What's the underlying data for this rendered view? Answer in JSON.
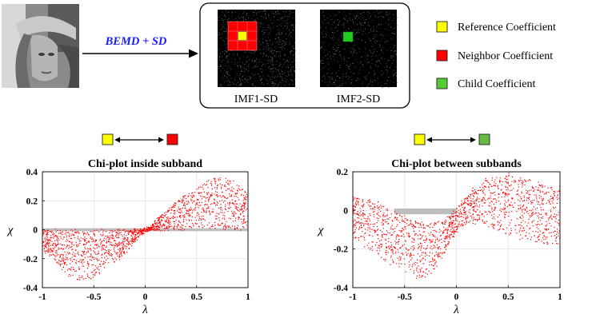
{
  "pipeline": {
    "input_image_icon": "photo-of-woman-with-hat",
    "method_label": "BEMD + SD",
    "method_color": "#1a1aff",
    "imf_panels": [
      {
        "label": "IMF1-SD",
        "marker": "reference-with-neighbors"
      },
      {
        "label": "IMF2-SD",
        "marker": "child"
      }
    ]
  },
  "legend": {
    "items": [
      {
        "label": "Reference Coefficient",
        "color": "#ffff00"
      },
      {
        "label": "Neighbor Coefficient",
        "color": "#ff0000"
      },
      {
        "label": "Child Coefficient",
        "color": "#55cc33"
      }
    ]
  },
  "colors": {
    "scatter": "#ff0000",
    "band": "#bdbdbd",
    "reference": "#ffff00",
    "neighbor": "#ff0000",
    "child": "#55cc33"
  },
  "chart_data": [
    {
      "type": "scatter",
      "title": "Chi-plot inside subband",
      "relation_icons": [
        "reference-coefficient",
        "neighbor-coefficient"
      ],
      "xlabel": "λ",
      "ylabel": "χ",
      "xlim": [
        -1,
        1
      ],
      "ylim": [
        -0.4,
        0.4
      ],
      "xticks": [
        "-1",
        "-0.5",
        "0",
        "0.5",
        "1"
      ],
      "yticks": [
        "0.4",
        "0.2",
        "0",
        "-0.2",
        "-0.4"
      ],
      "grid": true,
      "band": {
        "x": [
          -1,
          1
        ],
        "y": [
          -0.01,
          0.01
        ]
      },
      "series": [
        {
          "x": [
            -0.95,
            -0.85,
            -0.75,
            -0.65,
            -0.55,
            -0.45,
            -0.35,
            -0.25,
            -0.15,
            -0.05,
            0.05,
            0.15,
            0.25,
            0.35,
            0.45,
            0.55,
            0.65,
            0.75,
            0.85,
            0.95
          ],
          "y_upper": [
            0.0,
            0.0,
            0.0,
            0.0,
            0.0,
            0.0,
            0.0,
            0.0,
            0.0,
            0.0,
            0.02,
            0.1,
            0.16,
            0.22,
            0.27,
            0.32,
            0.35,
            0.36,
            0.34,
            0.28
          ],
          "y_lower": [
            -0.16,
            -0.27,
            -0.33,
            -0.36,
            -0.35,
            -0.31,
            -0.26,
            -0.21,
            -0.13,
            -0.04,
            0.0,
            0.0,
            0.0,
            0.0,
            0.0,
            0.0,
            0.0,
            0.0,
            0.0,
            0.0
          ]
        }
      ]
    },
    {
      "type": "scatter",
      "title": "Chi-plot between subbands",
      "relation_icons": [
        "reference-coefficient",
        "child-coefficient"
      ],
      "xlabel": "λ",
      "ylabel": "χ",
      "xlim": [
        -1,
        1
      ],
      "ylim": [
        -0.4,
        0.2
      ],
      "xticks": [
        "-1",
        "-0.5",
        "0",
        "0.5",
        "1"
      ],
      "yticks": [
        "0.2",
        "0",
        "-0.2",
        "-0.4"
      ],
      "grid": true,
      "band": {
        "x": [
          -0.6,
          0.0
        ],
        "y": [
          -0.02,
          0.01
        ]
      },
      "series": [
        {
          "x": [
            -0.95,
            -0.85,
            -0.75,
            -0.65,
            -0.55,
            -0.45,
            -0.35,
            -0.25,
            -0.15,
            -0.05,
            0.05,
            0.15,
            0.25,
            0.35,
            0.45,
            0.55,
            0.65,
            0.75,
            0.85,
            0.95
          ],
          "y_upper": [
            0.07,
            0.05,
            0.04,
            0.0,
            -0.02,
            -0.04,
            -0.06,
            -0.07,
            -0.05,
            -0.02,
            0.05,
            0.11,
            0.15,
            0.17,
            0.19,
            0.19,
            0.17,
            0.15,
            0.14,
            0.12
          ],
          "y_lower": [
            -0.16,
            -0.2,
            -0.24,
            -0.28,
            -0.31,
            -0.33,
            -0.35,
            -0.33,
            -0.26,
            -0.15,
            -0.08,
            -0.07,
            -0.07,
            -0.09,
            -0.12,
            -0.14,
            -0.15,
            -0.16,
            -0.18,
            -0.18
          ]
        }
      ]
    }
  ]
}
